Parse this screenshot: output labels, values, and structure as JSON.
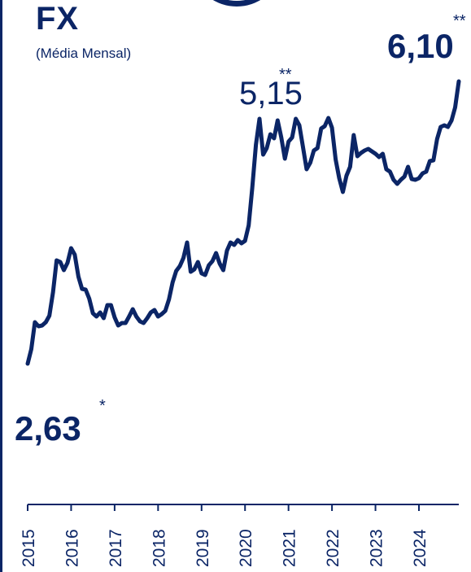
{
  "header": {
    "title": "FX",
    "subtitle": "(Média Mensal)"
  },
  "colors": {
    "line": "#0b2566",
    "background": "#ffffff"
  },
  "chart_data": {
    "type": "line",
    "title": "FX",
    "subtitle": "(Média Mensal)",
    "xlabel": "",
    "ylabel": "",
    "x_ticks": [
      "2015",
      "2016",
      "2017",
      "2018",
      "2019",
      "2020",
      "2021",
      "2022",
      "2023",
      "2024"
    ],
    "ylim": [
      2.2,
      6.3
    ],
    "grid": false,
    "legend": "none",
    "annotations": [
      {
        "label": "2,63",
        "marker": "*",
        "style": "bold",
        "at": "start"
      },
      {
        "label": "5,15",
        "marker": "**",
        "style": "regular",
        "at": "peak-2020"
      },
      {
        "label": "6,10",
        "marker": "**",
        "style": "bold",
        "at": "end"
      }
    ],
    "series": [
      {
        "x": [
          "2015-01",
          "2015-02",
          "2015-03",
          "2015-04",
          "2015-05",
          "2015-06",
          "2015-07",
          "2015-08",
          "2015-09",
          "2015-10",
          "2015-11",
          "2015-12",
          "2016-01",
          "2016-02",
          "2016-03",
          "2016-04",
          "2016-05",
          "2016-06",
          "2016-07",
          "2016-08",
          "2016-09",
          "2016-10",
          "2016-11",
          "2016-12",
          "2017-01",
          "2017-02",
          "2017-03",
          "2017-04",
          "2017-05",
          "2017-06",
          "2017-07",
          "2017-08",
          "2017-09",
          "2017-10",
          "2017-11",
          "2017-12",
          "2018-01",
          "2018-02",
          "2018-03",
          "2018-04",
          "2018-05",
          "2018-06",
          "2018-07",
          "2018-08",
          "2018-09",
          "2018-10",
          "2018-11",
          "2018-12",
          "2019-01",
          "2019-02",
          "2019-03",
          "2019-04",
          "2019-05",
          "2019-06",
          "2019-07",
          "2019-08",
          "2019-09",
          "2019-10",
          "2019-11",
          "2019-12",
          "2020-01",
          "2020-02",
          "2020-03",
          "2020-04",
          "2020-05",
          "2020-06",
          "2020-07",
          "2020-08",
          "2020-09",
          "2020-10",
          "2020-11",
          "2020-12",
          "2021-01",
          "2021-02",
          "2021-03",
          "2021-04",
          "2021-05",
          "2021-06",
          "2021-07",
          "2021-08",
          "2021-09",
          "2021-10",
          "2021-11",
          "2021-12",
          "2022-01",
          "2022-02",
          "2022-03",
          "2022-04",
          "2022-05",
          "2022-06",
          "2022-07",
          "2022-08",
          "2022-09",
          "2022-10",
          "2022-11",
          "2022-12",
          "2023-01",
          "2023-02",
          "2023-03",
          "2023-04",
          "2023-05",
          "2023-06",
          "2023-07",
          "2023-08",
          "2023-09",
          "2023-10",
          "2023-11",
          "2023-12",
          "2024-01",
          "2024-02",
          "2024-03",
          "2024-04",
          "2024-05",
          "2024-06",
          "2024-07",
          "2024-08",
          "2024-09",
          "2024-10",
          "2024-11",
          "2024-12"
        ],
        "values": [
          2.63,
          2.81,
          3.14,
          3.09,
          3.1,
          3.14,
          3.22,
          3.51,
          3.9,
          3.88,
          3.78,
          3.87,
          4.05,
          3.97,
          3.7,
          3.55,
          3.54,
          3.43,
          3.25,
          3.21,
          3.26,
          3.19,
          3.35,
          3.35,
          3.2,
          3.1,
          3.13,
          3.13,
          3.21,
          3.3,
          3.21,
          3.15,
          3.13,
          3.19,
          3.26,
          3.29,
          3.21,
          3.24,
          3.28,
          3.42,
          3.63,
          3.77,
          3.83,
          3.93,
          4.12,
          3.76,
          3.79,
          3.88,
          3.74,
          3.72,
          3.84,
          3.89,
          3.99,
          3.86,
          3.78,
          4.02,
          4.12,
          4.09,
          4.15,
          4.11,
          4.14,
          4.33,
          4.79,
          5.32,
          5.64,
          5.2,
          5.28,
          5.45,
          5.4,
          5.62,
          5.41,
          5.15,
          5.36,
          5.41,
          5.64,
          5.56,
          5.29,
          5.02,
          5.1,
          5.25,
          5.28,
          5.52,
          5.55,
          5.65,
          5.53,
          5.14,
          4.91,
          4.74,
          4.94,
          5.05,
          5.44,
          5.18,
          5.22,
          5.25,
          5.27,
          5.24,
          5.21,
          5.17,
          5.21,
          5.02,
          4.99,
          4.89,
          4.84,
          4.89,
          4.93,
          5.05,
          4.9,
          4.89,
          4.91,
          4.97,
          4.99,
          5.12,
          5.13,
          5.39,
          5.54,
          5.56,
          5.54,
          5.62,
          5.78,
          6.1
        ]
      }
    ]
  }
}
